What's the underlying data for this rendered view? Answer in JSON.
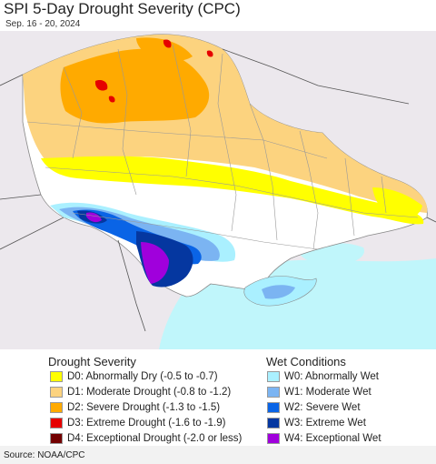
{
  "header": {
    "title": "SPI 5-Day Drought Severity (CPC)",
    "subtitle": "Sep. 16 - 20, 2024"
  },
  "colors": {
    "background_land": "#ece8ed",
    "water": "#c0f6fb",
    "no_anomaly": "#ffffff",
    "d0": "#ffff00",
    "d1": "#fcd37f",
    "d2": "#ffaa00",
    "d3": "#e60000",
    "d4": "#730000",
    "w0": "#aaf0ff",
    "w1": "#7bb4f2",
    "w2": "#0a64e6",
    "w3": "#0537a0",
    "w4": "#a000dc"
  },
  "legend": {
    "drought": {
      "title": "Drought Severity",
      "items": [
        {
          "label": "D0: Abnormally Dry (-0.5 to -0.7)",
          "color": "#ffff00"
        },
        {
          "label": "D1: Moderate Drought (-0.8 to -1.2)",
          "color": "#fcd37f"
        },
        {
          "label": "D2: Severe Drought (-1.3 to -1.5)",
          "color": "#ffaa00"
        },
        {
          "label": "D3: Extreme Drought (-1.6 to -1.9)",
          "color": "#e60000"
        },
        {
          "label": "D4: Exceptional Drought (-2.0 or less)",
          "color": "#730000"
        }
      ]
    },
    "wet": {
      "title": "Wet Conditions",
      "items": [
        {
          "label": "W0: Abnormally Wet",
          "color": "#aaf0ff"
        },
        {
          "label": "W1: Moderate Wet",
          "color": "#7bb4f2"
        },
        {
          "label": "W2: Severe Wet",
          "color": "#0a64e6"
        },
        {
          "label": "W3: Extreme Wet",
          "color": "#0537a0"
        },
        {
          "label": "W4: Exceptional Wet",
          "color": "#a000dc"
        }
      ]
    }
  },
  "footer": {
    "source": "Source: NOAA/CPC"
  }
}
